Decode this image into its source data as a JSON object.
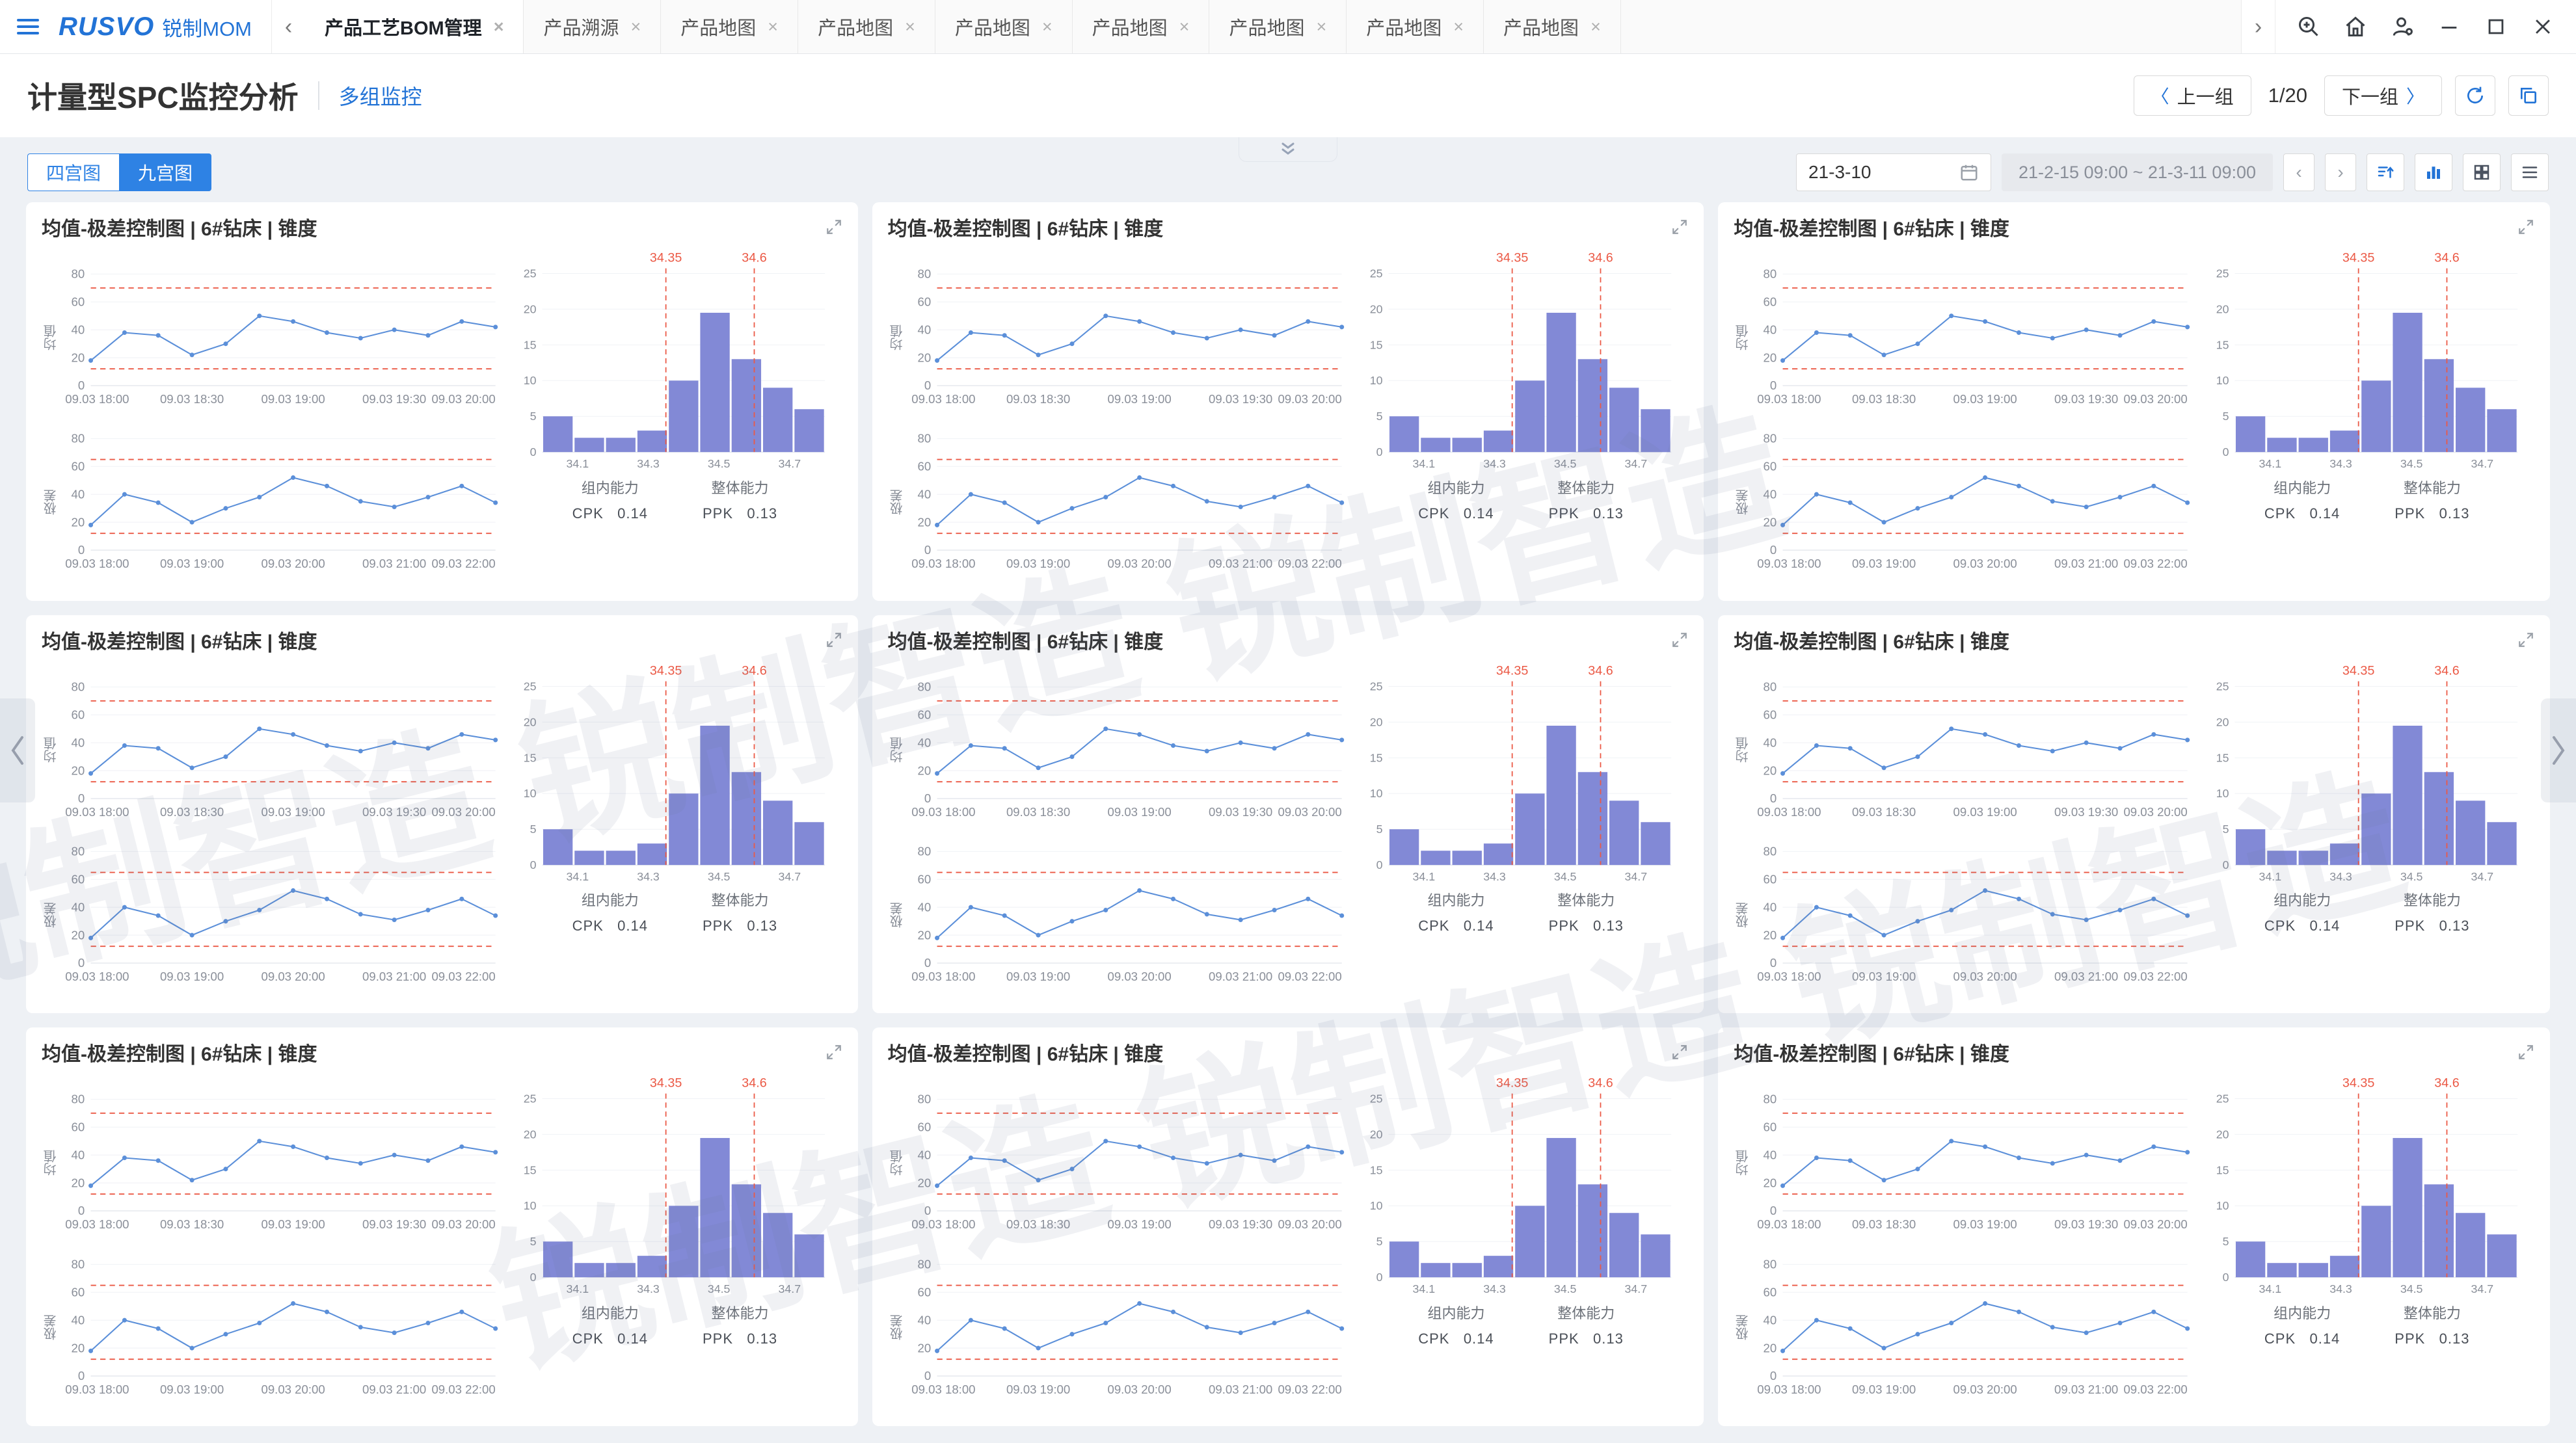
{
  "colors": {
    "brand_blue": "#2273D6",
    "accent_blue": "#2E82E4",
    "line_blue": "#5B8FD9",
    "bar_purple": "#8289D6",
    "limit_red": "#EB5945",
    "background": "#EEF1F5"
  },
  "topbar": {
    "brand": "RUSVO",
    "brand_name": "锐制MOM",
    "tabs": [
      {
        "label": "产品工艺BOM管理",
        "active": true
      },
      {
        "label": "产品溯源",
        "active": false
      },
      {
        "label": "产品地图",
        "active": false
      },
      {
        "label": "产品地图",
        "active": false
      },
      {
        "label": "产品地图",
        "active": false
      },
      {
        "label": "产品地图",
        "active": false
      },
      {
        "label": "产品地图",
        "active": false
      },
      {
        "label": "产品地图",
        "active": false
      },
      {
        "label": "产品地图",
        "active": false
      }
    ]
  },
  "header": {
    "title": "计量型SPC监控分析",
    "subtitle": "多组监控",
    "prev_label": "上一组",
    "page": "1/20",
    "next_label": "下一组"
  },
  "toolbar": {
    "view_options": [
      {
        "label": "四宫图",
        "active": false
      },
      {
        "label": "九宫图",
        "active": true
      }
    ],
    "date": "21-3-10",
    "time_range": "21-2-15 09:00 ~ 21-3-11 09:00"
  },
  "watermark": "锐制智造",
  "card_count": 9,
  "card": {
    "title": "均值-极差控制图 | 6#钻床 | 锥度",
    "capability": {
      "within_label": "组内能力",
      "within_metric": "CPK",
      "within_value": "0.14",
      "overall_label": "整体能力",
      "overall_metric": "PPK",
      "overall_value": "0.13"
    }
  },
  "chart_data": [
    {
      "id": "mean_control_chart",
      "type": "line",
      "ylabel": "均值",
      "ylim": [
        0,
        80
      ],
      "yticks": [
        0,
        20,
        40,
        60,
        80
      ],
      "ucl": 70,
      "lcl": 12,
      "x_labels": [
        "09.03 18:00",
        "09.03 18:30",
        "09.03 19:00",
        "09.03 19:30",
        "09.03 20:00"
      ],
      "values": [
        18,
        38,
        36,
        22,
        30,
        50,
        46,
        38,
        34,
        40,
        36,
        46,
        42
      ],
      "note": "identical chart repeated in all 9 grid cards"
    },
    {
      "id": "range_control_chart",
      "type": "line",
      "ylabel": "极差",
      "ylim": [
        0,
        80
      ],
      "yticks": [
        0,
        20,
        40,
        60,
        80
      ],
      "ucl": 65,
      "lcl": 12,
      "x_labels": [
        "09.03 18:00",
        "09.03 19:00",
        "09.03 20:00",
        "09.03 21:00",
        "09.03 22:00"
      ],
      "values": [
        18,
        40,
        34,
        20,
        30,
        38,
        52,
        46,
        35,
        31,
        38,
        46,
        34
      ],
      "note": "identical chart repeated in all 9 grid cards"
    },
    {
      "id": "capability_histogram",
      "type": "bar",
      "ylim": [
        0,
        25
      ],
      "yticks": [
        0,
        5,
        10,
        15,
        20,
        25
      ],
      "xlim": [
        34.0,
        34.8
      ],
      "x_ticks": [
        34.1,
        34.3,
        34.5,
        34.7
      ],
      "values": [
        5,
        2,
        2,
        3,
        10,
        19.5,
        13,
        9,
        6
      ],
      "lsl": 34.35,
      "usl": 34.6,
      "limit_labels": [
        "34.35",
        "34.6"
      ],
      "note": "identical chart repeated in all 9 grid cards"
    }
  ]
}
